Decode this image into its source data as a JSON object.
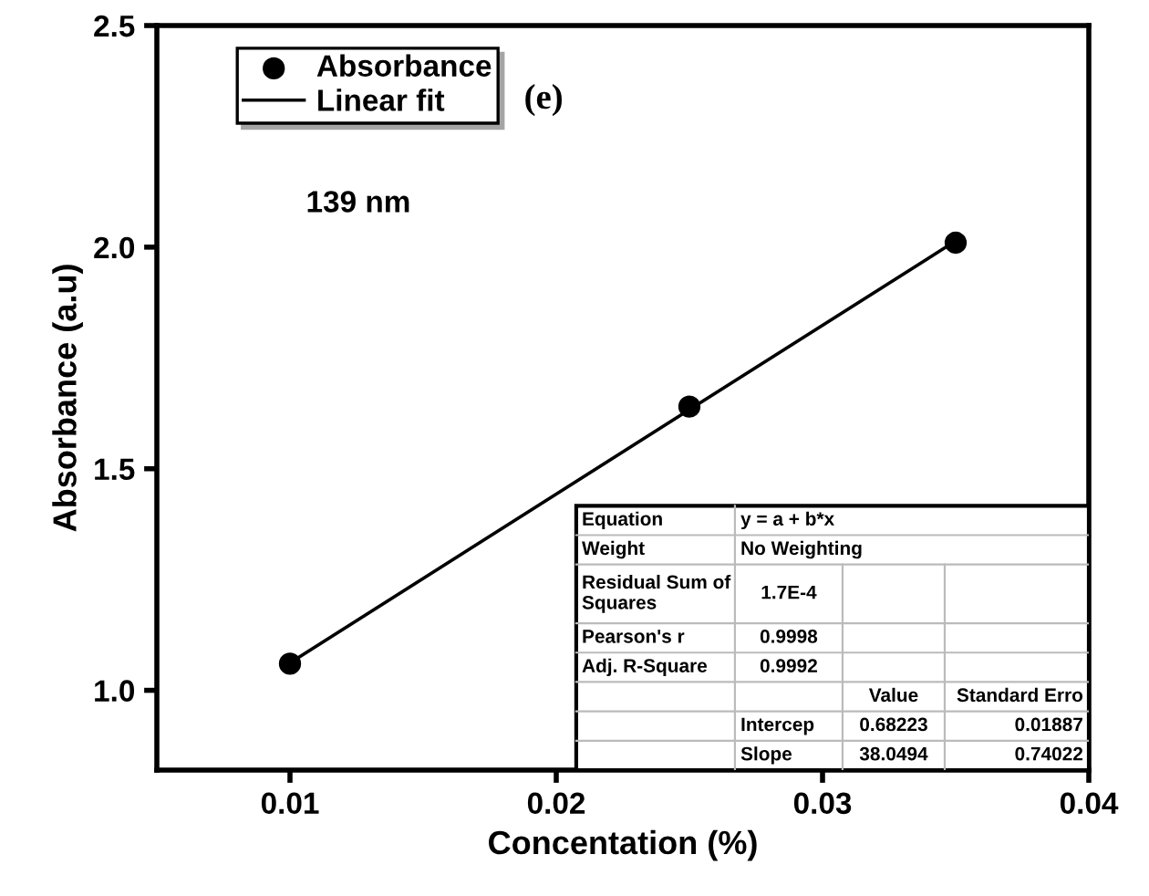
{
  "chart_data": {
    "type": "scatter",
    "xlabel": "Concentation (%)",
    "ylabel": "Absorbance (a.u)",
    "xlim": [
      0.005,
      0.04
    ],
    "ylim": [
      0.82,
      2.5
    ],
    "xticks": [
      0.01,
      0.02,
      0.03,
      0.04
    ],
    "yticks": [
      {
        "value": 1.0,
        "label": "1.0"
      },
      {
        "value": 1.5,
        "label": "1.5"
      },
      {
        "value": 2.0,
        "label": "2.0"
      },
      {
        "value": 2.5,
        "label": "2.5"
      }
    ],
    "x": [
      0.01,
      0.025,
      0.035
    ],
    "series": [
      {
        "name": "Absorbance",
        "color": "#000000",
        "marker": "circle",
        "values": [
          1.06,
          1.64,
          2.01
        ]
      },
      {
        "name": "Linear fit",
        "type": "line",
        "color": "#000000",
        "line_style": "solid",
        "x": [
          0.01,
          0.035
        ],
        "values": [
          1.062,
          2.014
        ]
      }
    ],
    "legend": "top left",
    "grid": false,
    "annotations": [
      "(e)",
      "139 nm",
      "Equation",
      "y = a + b*x",
      "Weight",
      "No Weighting",
      "Residual Sum of Squares",
      "1.7E-4",
      "Pearson's r",
      "0.9998",
      "Adj. R-Square",
      "0.9992",
      "Value",
      "Standard Erro",
      "Intercep",
      "0.68223",
      "0.01887",
      "Slope",
      "38.0494",
      "0.74022"
    ]
  }
}
